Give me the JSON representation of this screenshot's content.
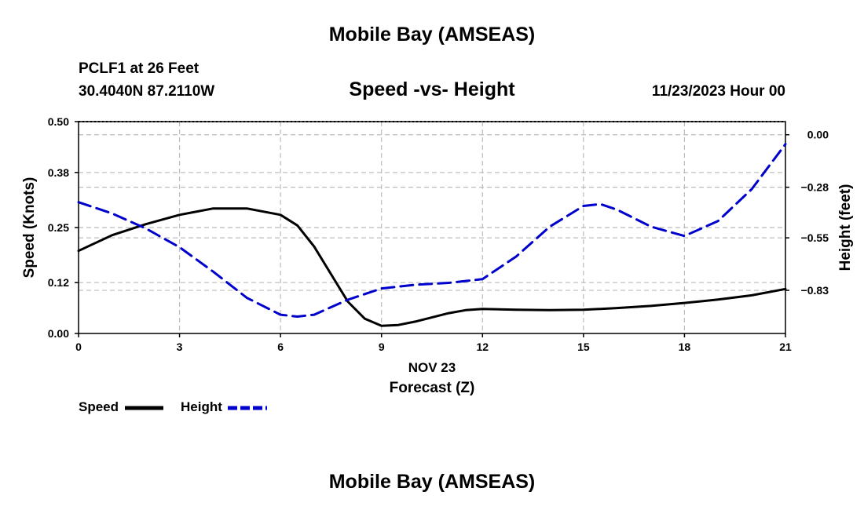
{
  "header": {
    "title": "Mobile Bay (AMSEAS)",
    "station": "PCLF1 at 26 Feet",
    "coords": "30.4040N  87.2110W",
    "subtitle": "Speed -vs- Height",
    "datetime": "11/23/2023 Hour 00"
  },
  "footer": {
    "title": "Mobile Bay (AMSEAS)"
  },
  "chart_data": {
    "type": "line",
    "title": "Speed -vs- Height",
    "xlabel_date": "NOV 23",
    "xlabel": "Forecast (Z)",
    "ylabel": "Speed (Knots)",
    "y2label": "Height (feet)",
    "xlim": [
      0,
      21
    ],
    "ylim": [
      0,
      0.5
    ],
    "y2lim": [
      -1.06,
      0.07
    ],
    "x_ticks": [
      "0",
      "3",
      "6",
      "9",
      "12",
      "15",
      "18",
      "21"
    ],
    "y_ticks": [
      "0.00",
      "0.12",
      "0.25",
      "0.38",
      "0.50"
    ],
    "y2_ticks": [
      "0.00",
      "-0.28",
      "-0.55",
      "-0.83"
    ],
    "grid": true,
    "legend": "bottom-left",
    "colors": {
      "speed": "#000000",
      "height": "#0000cc",
      "grid": "#bbbbbb"
    },
    "series": [
      {
        "name": "Speed",
        "axis": "left",
        "style": "solid",
        "x": [
          0,
          1,
          2,
          3,
          4,
          5,
          6,
          6.5,
          7,
          7.5,
          8,
          8.5,
          9,
          9.5,
          10,
          11,
          11.5,
          12,
          13,
          14,
          15,
          16,
          17,
          18,
          19,
          20,
          21
        ],
        "y": [
          0.195,
          0.232,
          0.258,
          0.28,
          0.295,
          0.295,
          0.28,
          0.255,
          0.205,
          0.14,
          0.075,
          0.035,
          0.018,
          0.02,
          0.028,
          0.048,
          0.055,
          0.058,
          0.056,
          0.055,
          0.056,
          0.06,
          0.065,
          0.072,
          0.08,
          0.09,
          0.105
        ]
      },
      {
        "name": "Height",
        "axis": "right",
        "style": "dashed",
        "x": [
          0,
          1,
          2,
          3,
          4,
          5,
          6,
          6.5,
          7,
          8,
          9,
          10,
          11,
          12,
          13,
          14,
          15,
          15.5,
          16,
          17,
          18,
          19,
          20,
          21
        ],
        "y": [
          -0.36,
          -0.42,
          -0.5,
          -0.6,
          -0.73,
          -0.87,
          -0.96,
          -0.97,
          -0.96,
          -0.88,
          -0.82,
          -0.8,
          -0.79,
          -0.77,
          -0.65,
          -0.49,
          -0.38,
          -0.37,
          -0.4,
          -0.49,
          -0.54,
          -0.46,
          -0.29,
          -0.05
        ]
      }
    ]
  }
}
